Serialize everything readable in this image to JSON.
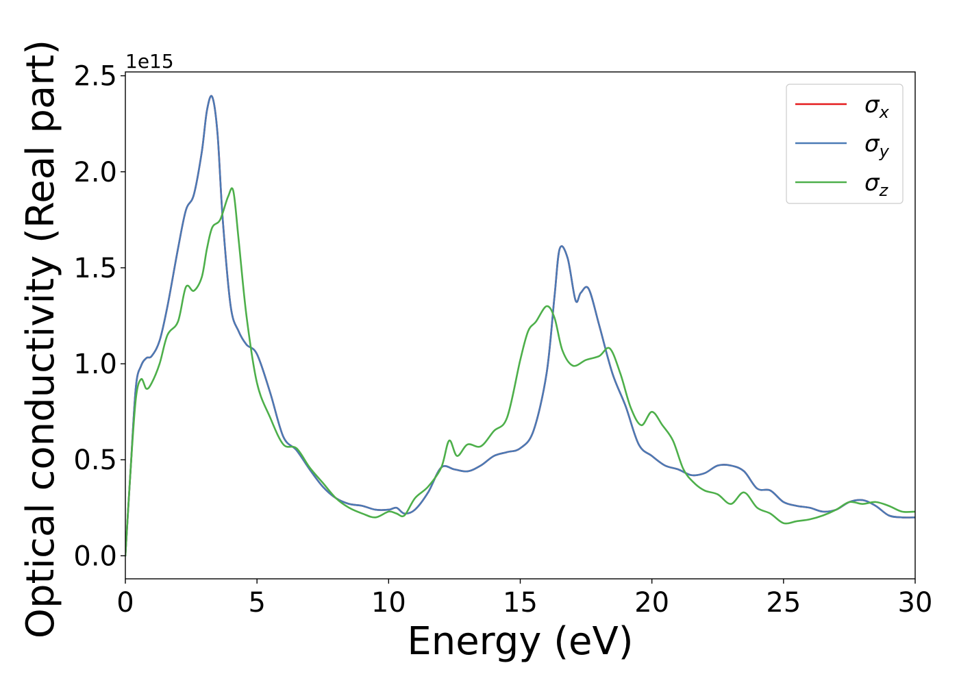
{
  "chart_data": {
    "type": "line",
    "title": "",
    "xlabel": "Energy (eV)",
    "ylabel": "Optical conductivity (Real part)",
    "y_offset_text": "1e15",
    "xlim": [
      0,
      30
    ],
    "ylim": [
      -0.12,
      2.52
    ],
    "y_scale_factor": 1000000000000000.0,
    "x_ticks": [
      0,
      5,
      10,
      15,
      20,
      25,
      30
    ],
    "x_tick_labels": [
      "0",
      "5",
      "10",
      "15",
      "20",
      "25",
      "30"
    ],
    "y_ticks": [
      0.0,
      0.5,
      1.0,
      1.5,
      2.0,
      2.5
    ],
    "y_tick_labels": [
      "0.0",
      "0.5",
      "1.0",
      "1.5",
      "2.0",
      "2.5"
    ],
    "grid": false,
    "legend_position": "top-right",
    "series": [
      {
        "name": "σx",
        "legend_base": "σ",
        "legend_sub": "x",
        "color": "#e41a1c",
        "x": [
          0,
          0.2,
          0.4,
          0.6,
          0.8,
          1.0,
          1.3,
          1.6,
          2.0,
          2.3,
          2.6,
          2.9,
          3.1,
          3.3,
          3.5,
          3.7,
          4.0,
          4.3,
          4.6,
          5.0,
          5.5,
          6.0,
          6.5,
          7.0,
          7.5,
          8.0,
          8.5,
          9.0,
          9.5,
          10.0,
          10.3,
          10.6,
          11.0,
          11.5,
          12.0,
          12.5,
          13.0,
          13.5,
          14.0,
          14.5,
          15.0,
          15.5,
          16.0,
          16.3,
          16.5,
          16.8,
          17.1,
          17.3,
          17.6,
          18.0,
          18.5,
          19.0,
          19.5,
          20.0,
          20.5,
          21.0,
          21.5,
          22.0,
          22.5,
          23.0,
          23.5,
          24.0,
          24.5,
          25.0,
          25.5,
          26.0,
          26.5,
          27.0,
          27.5,
          28.0,
          28.5,
          29.0,
          29.5,
          30.0
        ],
        "values": [
          0.0,
          0.45,
          0.88,
          0.99,
          1.03,
          1.04,
          1.12,
          1.3,
          1.6,
          1.8,
          1.88,
          2.1,
          2.32,
          2.39,
          2.2,
          1.75,
          1.3,
          1.17,
          1.1,
          1.05,
          0.85,
          0.62,
          0.55,
          0.45,
          0.36,
          0.3,
          0.27,
          0.26,
          0.24,
          0.24,
          0.25,
          0.22,
          0.24,
          0.33,
          0.46,
          0.45,
          0.44,
          0.47,
          0.52,
          0.54,
          0.56,
          0.65,
          0.95,
          1.35,
          1.6,
          1.55,
          1.33,
          1.37,
          1.39,
          1.2,
          0.95,
          0.78,
          0.58,
          0.52,
          0.47,
          0.45,
          0.42,
          0.43,
          0.47,
          0.47,
          0.44,
          0.35,
          0.34,
          0.28,
          0.26,
          0.25,
          0.23,
          0.24,
          0.28,
          0.29,
          0.26,
          0.21,
          0.2,
          0.2
        ]
      },
      {
        "name": "σy",
        "legend_base": "σ",
        "legend_sub": "y",
        "color": "#4a7ab5",
        "x": [
          0,
          0.2,
          0.4,
          0.6,
          0.8,
          1.0,
          1.3,
          1.6,
          2.0,
          2.3,
          2.6,
          2.9,
          3.1,
          3.3,
          3.5,
          3.7,
          4.0,
          4.3,
          4.6,
          5.0,
          5.5,
          6.0,
          6.5,
          7.0,
          7.5,
          8.0,
          8.5,
          9.0,
          9.5,
          10.0,
          10.3,
          10.6,
          11.0,
          11.5,
          12.0,
          12.5,
          13.0,
          13.5,
          14.0,
          14.5,
          15.0,
          15.5,
          16.0,
          16.3,
          16.5,
          16.8,
          17.1,
          17.3,
          17.6,
          18.0,
          18.5,
          19.0,
          19.5,
          20.0,
          20.5,
          21.0,
          21.5,
          22.0,
          22.5,
          23.0,
          23.5,
          24.0,
          24.5,
          25.0,
          25.5,
          26.0,
          26.5,
          27.0,
          27.5,
          28.0,
          28.5,
          29.0,
          29.5,
          30.0
        ],
        "values": [
          0.0,
          0.45,
          0.88,
          0.99,
          1.03,
          1.04,
          1.12,
          1.3,
          1.6,
          1.8,
          1.88,
          2.1,
          2.32,
          2.39,
          2.2,
          1.75,
          1.3,
          1.17,
          1.1,
          1.05,
          0.85,
          0.62,
          0.55,
          0.45,
          0.36,
          0.3,
          0.27,
          0.26,
          0.24,
          0.24,
          0.25,
          0.22,
          0.24,
          0.33,
          0.46,
          0.45,
          0.44,
          0.47,
          0.52,
          0.54,
          0.56,
          0.65,
          0.95,
          1.35,
          1.6,
          1.55,
          1.33,
          1.37,
          1.39,
          1.2,
          0.95,
          0.78,
          0.58,
          0.52,
          0.47,
          0.45,
          0.42,
          0.43,
          0.47,
          0.47,
          0.44,
          0.35,
          0.34,
          0.28,
          0.26,
          0.25,
          0.23,
          0.24,
          0.28,
          0.29,
          0.26,
          0.21,
          0.2,
          0.2
        ]
      },
      {
        "name": "σz",
        "legend_base": "σ",
        "legend_sub": "z",
        "color": "#4daf4a",
        "x": [
          0,
          0.2,
          0.4,
          0.6,
          0.8,
          1.0,
          1.3,
          1.6,
          2.0,
          2.3,
          2.6,
          2.9,
          3.1,
          3.3,
          3.6,
          3.9,
          4.1,
          4.3,
          4.6,
          5.0,
          5.5,
          6.0,
          6.5,
          7.0,
          7.5,
          8.0,
          8.5,
          9.0,
          9.5,
          10.0,
          10.3,
          10.6,
          11.0,
          11.5,
          12.0,
          12.3,
          12.6,
          13.0,
          13.5,
          14.0,
          14.5,
          15.0,
          15.3,
          15.6,
          16.0,
          16.3,
          16.6,
          17.0,
          17.5,
          18.0,
          18.4,
          18.8,
          19.2,
          19.6,
          20.0,
          20.4,
          20.8,
          21.2,
          21.6,
          22.0,
          22.5,
          23.0,
          23.5,
          24.0,
          24.5,
          25.0,
          25.5,
          26.0,
          26.5,
          27.0,
          27.5,
          28.0,
          28.5,
          29.0,
          29.5,
          30.0
        ],
        "values": [
          0.0,
          0.45,
          0.82,
          0.92,
          0.87,
          0.9,
          1.0,
          1.15,
          1.22,
          1.4,
          1.38,
          1.45,
          1.6,
          1.71,
          1.75,
          1.87,
          1.9,
          1.65,
          1.25,
          0.9,
          0.72,
          0.58,
          0.56,
          0.46,
          0.38,
          0.3,
          0.25,
          0.22,
          0.2,
          0.23,
          0.22,
          0.21,
          0.3,
          0.36,
          0.46,
          0.6,
          0.52,
          0.58,
          0.57,
          0.65,
          0.72,
          1.02,
          1.17,
          1.22,
          1.3,
          1.24,
          1.07,
          0.99,
          1.02,
          1.04,
          1.08,
          0.95,
          0.77,
          0.68,
          0.75,
          0.68,
          0.6,
          0.45,
          0.38,
          0.34,
          0.32,
          0.27,
          0.33,
          0.25,
          0.22,
          0.17,
          0.18,
          0.19,
          0.21,
          0.24,
          0.28,
          0.27,
          0.28,
          0.26,
          0.23,
          0.23
        ]
      }
    ]
  }
}
